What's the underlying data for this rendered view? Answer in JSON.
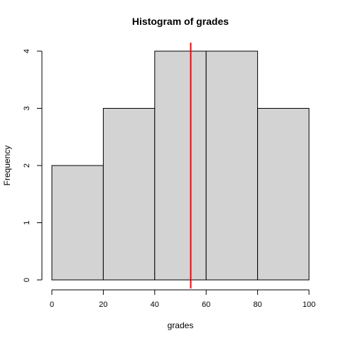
{
  "chart_data": {
    "type": "bar",
    "title": "Histogram of grades",
    "xlabel": "grades",
    "ylabel": "Frequency",
    "bins": [
      {
        "start": 0,
        "end": 20,
        "count": 2
      },
      {
        "start": 20,
        "end": 40,
        "count": 3
      },
      {
        "start": 40,
        "end": 60,
        "count": 4
      },
      {
        "start": 60,
        "end": 80,
        "count": 4
      },
      {
        "start": 80,
        "end": 100,
        "count": 3
      }
    ],
    "xlim": [
      0,
      100
    ],
    "ylim": [
      0,
      4
    ],
    "xticks": [
      "0",
      "20",
      "40",
      "60",
      "80",
      "100"
    ],
    "yticks": [
      "0",
      "1",
      "2",
      "3",
      "4"
    ],
    "vline": {
      "x": 54,
      "color": "#ff0000"
    },
    "bar_fill": "#d3d3d3",
    "bar_stroke": "#000000",
    "grid": false,
    "legend": "none"
  }
}
